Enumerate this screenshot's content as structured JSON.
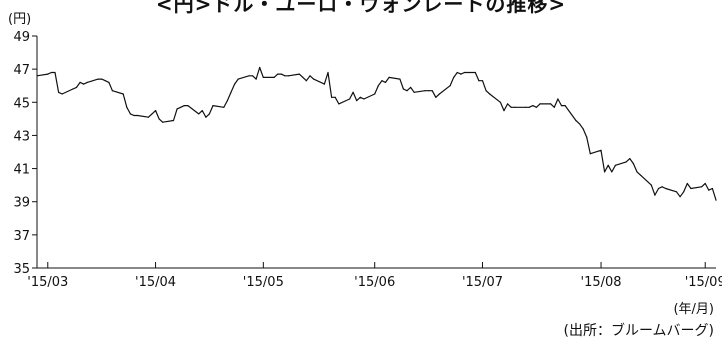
{
  "chart_data": {
    "type": "line",
    "title": "<円>ドル・ユーロ・ウォンレートの推移>",
    "unit_label": "(円)",
    "period_unit": "(年/月)",
    "source": "(出所：ブルームバーグ)",
    "ylim": [
      35,
      49
    ],
    "y_ticks": [
      35,
      37,
      39,
      41,
      43,
      45,
      47,
      49
    ],
    "grid": false,
    "x_ticks": [
      {
        "label": "'15/03",
        "date": "2015-03-02"
      },
      {
        "label": "'15/04",
        "date": "2015-04-01"
      },
      {
        "label": "'15/05",
        "date": "2015-05-01"
      },
      {
        "label": "'15/06",
        "date": "2015-06-01"
      },
      {
        "label": "'15/07",
        "date": "2015-07-01"
      },
      {
        "label": "'15/08",
        "date": "2015-08-03"
      },
      {
        "label": "'15/09",
        "date": "2015-09-01"
      }
    ],
    "series": [
      {
        "color": "#111111",
        "points": [
          [
            "2015-02-27",
            46.6
          ],
          [
            "2015-03-02",
            46.7
          ],
          [
            "2015-03-03",
            46.8
          ],
          [
            "2015-03-04",
            46.8
          ],
          [
            "2015-03-05",
            45.6
          ],
          [
            "2015-03-06",
            45.5
          ],
          [
            "2015-03-09",
            45.8
          ],
          [
            "2015-03-10",
            45.9
          ],
          [
            "2015-03-11",
            46.2
          ],
          [
            "2015-03-12",
            46.1
          ],
          [
            "2015-03-13",
            46.2
          ],
          [
            "2015-03-16",
            46.4
          ],
          [
            "2015-03-17",
            46.4
          ],
          [
            "2015-03-18",
            46.3
          ],
          [
            "2015-03-19",
            46.2
          ],
          [
            "2015-03-20",
            45.7
          ],
          [
            "2015-03-23",
            45.5
          ],
          [
            "2015-03-24",
            44.7
          ],
          [
            "2015-03-25",
            44.3
          ],
          [
            "2015-03-26",
            44.2
          ],
          [
            "2015-03-27",
            44.2
          ],
          [
            "2015-03-30",
            44.1
          ],
          [
            "2015-03-31",
            44.3
          ],
          [
            "2015-04-01",
            44.5
          ],
          [
            "2015-04-02",
            44.0
          ],
          [
            "2015-04-03",
            43.8
          ],
          [
            "2015-04-06",
            43.9
          ],
          [
            "2015-04-07",
            44.6
          ],
          [
            "2015-04-08",
            44.7
          ],
          [
            "2015-04-09",
            44.8
          ],
          [
            "2015-04-10",
            44.8
          ],
          [
            "2015-04-13",
            44.3
          ],
          [
            "2015-04-14",
            44.5
          ],
          [
            "2015-04-15",
            44.1
          ],
          [
            "2015-04-16",
            44.3
          ],
          [
            "2015-04-17",
            44.8
          ],
          [
            "2015-04-20",
            44.7
          ],
          [
            "2015-04-21",
            45.1
          ],
          [
            "2015-04-22",
            45.6
          ],
          [
            "2015-04-23",
            46.1
          ],
          [
            "2015-04-24",
            46.4
          ],
          [
            "2015-04-27",
            46.6
          ],
          [
            "2015-04-28",
            46.6
          ],
          [
            "2015-04-29",
            46.4
          ],
          [
            "2015-04-30",
            47.1
          ],
          [
            "2015-05-01",
            46.5
          ],
          [
            "2015-05-04",
            46.5
          ],
          [
            "2015-05-05",
            46.7
          ],
          [
            "2015-05-06",
            46.7
          ],
          [
            "2015-05-07",
            46.6
          ],
          [
            "2015-05-08",
            46.6
          ],
          [
            "2015-05-11",
            46.7
          ],
          [
            "2015-05-12",
            46.5
          ],
          [
            "2015-05-13",
            46.3
          ],
          [
            "2015-05-14",
            46.6
          ],
          [
            "2015-05-15",
            46.4
          ],
          [
            "2015-05-18",
            46.1
          ],
          [
            "2015-05-19",
            46.8
          ],
          [
            "2015-05-20",
            45.3
          ],
          [
            "2015-05-21",
            45.3
          ],
          [
            "2015-05-22",
            44.9
          ],
          [
            "2015-05-25",
            45.2
          ],
          [
            "2015-05-26",
            45.6
          ],
          [
            "2015-05-27",
            45.1
          ],
          [
            "2015-05-28",
            45.3
          ],
          [
            "2015-05-29",
            45.2
          ],
          [
            "2015-06-01",
            45.5
          ],
          [
            "2015-06-02",
            46.0
          ],
          [
            "2015-06-03",
            46.3
          ],
          [
            "2015-06-04",
            46.2
          ],
          [
            "2015-06-05",
            46.5
          ],
          [
            "2015-06-08",
            46.4
          ],
          [
            "2015-06-09",
            45.8
          ],
          [
            "2015-06-10",
            45.7
          ],
          [
            "2015-06-11",
            45.9
          ],
          [
            "2015-06-12",
            45.6
          ],
          [
            "2015-06-15",
            45.7
          ],
          [
            "2015-06-16",
            45.7
          ],
          [
            "2015-06-17",
            45.7
          ],
          [
            "2015-06-18",
            45.3
          ],
          [
            "2015-06-19",
            45.5
          ],
          [
            "2015-06-22",
            46.0
          ],
          [
            "2015-06-23",
            46.5
          ],
          [
            "2015-06-24",
            46.8
          ],
          [
            "2015-06-25",
            46.7
          ],
          [
            "2015-06-26",
            46.8
          ],
          [
            "2015-06-29",
            46.8
          ],
          [
            "2015-06-30",
            46.3
          ],
          [
            "2015-07-01",
            46.3
          ],
          [
            "2015-07-02",
            45.7
          ],
          [
            "2015-07-03",
            45.5
          ],
          [
            "2015-07-06",
            45.0
          ],
          [
            "2015-07-07",
            44.5
          ],
          [
            "2015-07-08",
            44.9
          ],
          [
            "2015-07-09",
            44.7
          ],
          [
            "2015-07-10",
            44.7
          ],
          [
            "2015-07-13",
            44.7
          ],
          [
            "2015-07-14",
            44.7
          ],
          [
            "2015-07-15",
            44.8
          ],
          [
            "2015-07-16",
            44.7
          ],
          [
            "2015-07-17",
            44.9
          ],
          [
            "2015-07-20",
            44.9
          ],
          [
            "2015-07-21",
            44.7
          ],
          [
            "2015-07-22",
            45.2
          ],
          [
            "2015-07-23",
            44.8
          ],
          [
            "2015-07-24",
            44.8
          ],
          [
            "2015-07-27",
            43.9
          ],
          [
            "2015-07-28",
            43.7
          ],
          [
            "2015-07-29",
            43.4
          ],
          [
            "2015-07-30",
            42.9
          ],
          [
            "2015-07-31",
            41.9
          ],
          [
            "2015-08-03",
            42.1
          ],
          [
            "2015-08-04",
            40.8
          ],
          [
            "2015-08-05",
            41.2
          ],
          [
            "2015-08-06",
            40.8
          ],
          [
            "2015-08-07",
            41.2
          ],
          [
            "2015-08-10",
            41.4
          ],
          [
            "2015-08-11",
            41.6
          ],
          [
            "2015-08-12",
            41.3
          ],
          [
            "2015-08-13",
            40.8
          ],
          [
            "2015-08-14",
            40.6
          ],
          [
            "2015-08-17",
            40.0
          ],
          [
            "2015-08-18",
            39.4
          ],
          [
            "2015-08-19",
            39.8
          ],
          [
            "2015-08-20",
            39.9
          ],
          [
            "2015-08-21",
            39.8
          ],
          [
            "2015-08-24",
            39.6
          ],
          [
            "2015-08-25",
            39.3
          ],
          [
            "2015-08-26",
            39.6
          ],
          [
            "2015-08-27",
            40.1
          ],
          [
            "2015-08-28",
            39.8
          ],
          [
            "2015-08-31",
            39.9
          ],
          [
            "2015-09-01",
            40.1
          ],
          [
            "2015-09-02",
            39.7
          ],
          [
            "2015-09-03",
            39.8
          ],
          [
            "2015-09-04",
            39.1
          ]
        ]
      }
    ]
  }
}
